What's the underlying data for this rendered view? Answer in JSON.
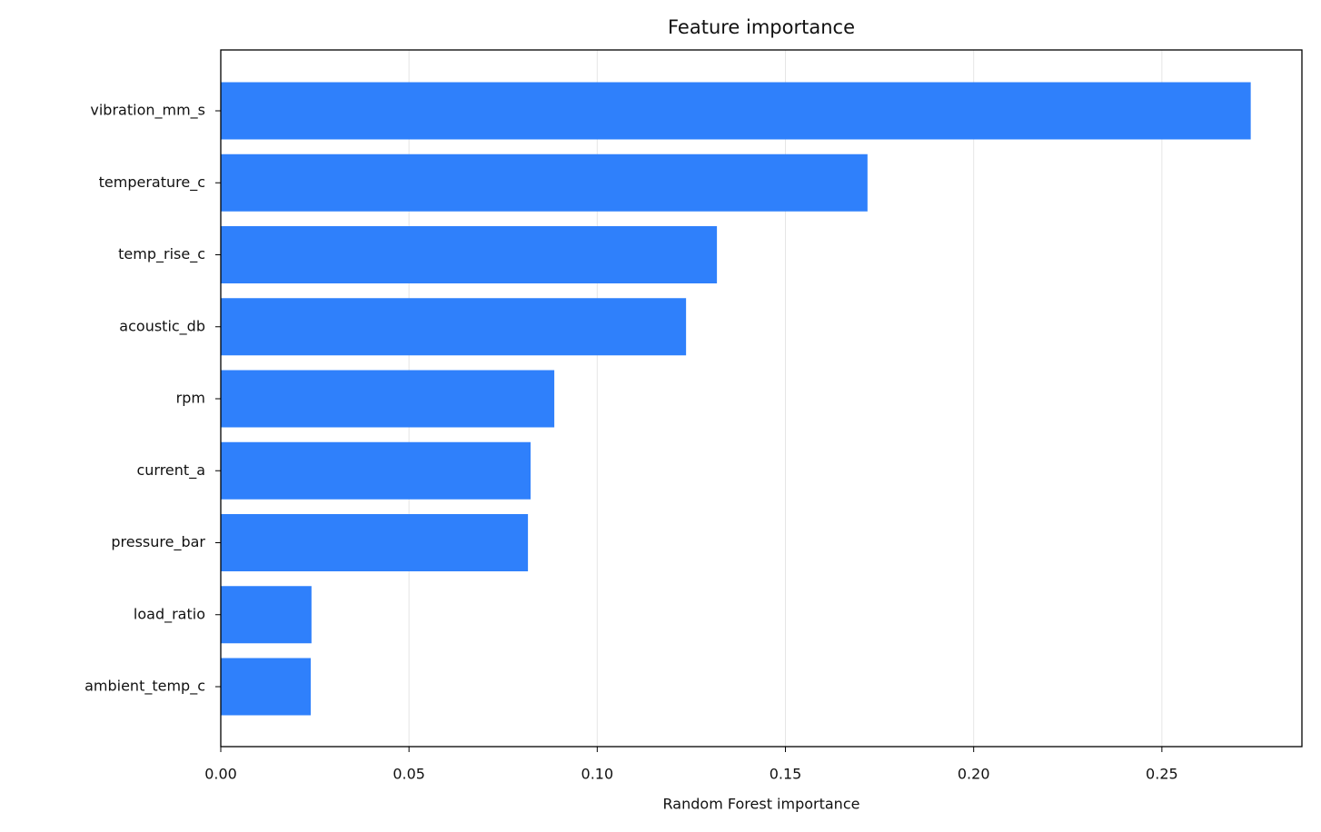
{
  "chart_data": {
    "type": "hbar",
    "title": "Feature importance",
    "x_label": "Random Forest importance",
    "categories": [
      "vibration_mm_s",
      "temperature_c",
      "temp_rise_c",
      "acoustic_db",
      "rpm",
      "current_a",
      "pressure_bar",
      "load_ratio",
      "ambient_temp_c"
    ],
    "values": [
      0.2736,
      0.1718,
      0.1318,
      0.1236,
      0.0886,
      0.0823,
      0.0816,
      0.0241,
      0.0239
    ],
    "color": "#2f80fb",
    "xlim": [
      0,
      0.2872
    ],
    "xticks": [
      {
        "value": 0,
        "label": "0.00"
      },
      0.05,
      {
        "value": 0.1,
        "label": "0.10"
      },
      0.15,
      {
        "value": 0.2,
        "label": "0.20"
      },
      0.25
    ],
    "grid": true
  }
}
